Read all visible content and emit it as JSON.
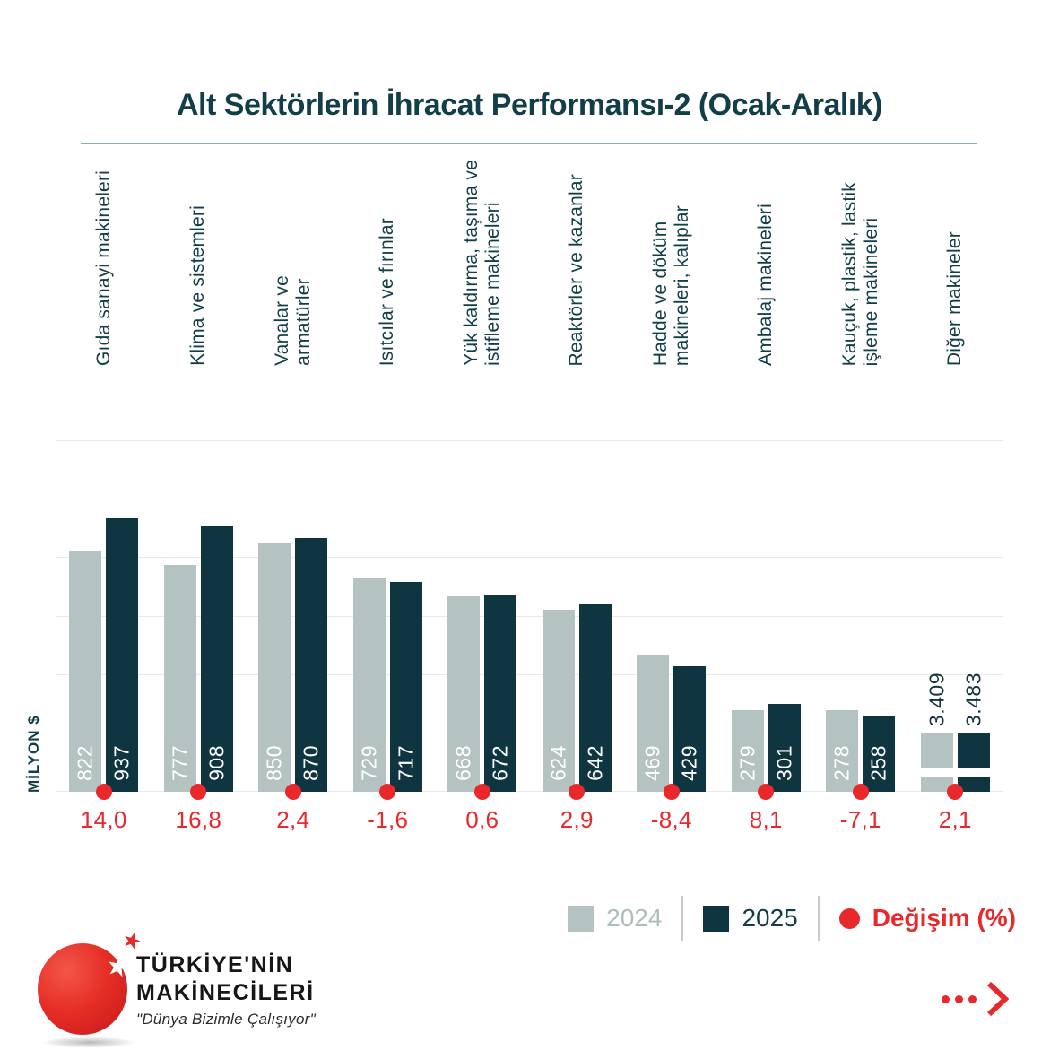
{
  "title": "Alt Sektörlerin İhracat Performansı-2 (Ocak-Aralık)",
  "y_axis_label": "MİLYON $",
  "chart_data": {
    "type": "bar",
    "title": "Alt Sektörlerin İhracat Performansı-2 (Ocak-Aralık)",
    "ylabel": "MİLYON $",
    "ylim": [
      0,
      1200
    ],
    "grid_step": 200,
    "grid": true,
    "legend_position": "bottom-right",
    "categories": [
      "Gıda sanayi makineleri",
      "Klima ve sistemleri",
      "Vanalar ve armatürler",
      "Isıtcılar ve fırınlar",
      "Yük kaldırma, taşıma ve istifleme makineleri",
      "Reaktörler ve kazanlar",
      "Hadde ve döküm makineleri, kalıplar",
      "Ambalaj makineleri",
      "Kauçuk, plastik, lastik işleme makineleri",
      "Diğer makineler"
    ],
    "category_label_lines": [
      [
        "Gıda sanayi makineleri"
      ],
      [
        "Klima ve sistemleri"
      ],
      [
        "Vanalar ve",
        "armatürler"
      ],
      [
        "Isıtcılar ve fırınlar"
      ],
      [
        "Yük kaldırma, taşıma ve",
        "istifleme makineleri"
      ],
      [
        "Reaktörler ve kazanlar"
      ],
      [
        "Hadde ve döküm",
        "makineleri, kalıplar"
      ],
      [
        "Ambalaj makineleri"
      ],
      [
        "Kauçuk, plastik, lastik",
        "işleme makineleri"
      ],
      [
        "Diğer makineler"
      ]
    ],
    "series": [
      {
        "name": "2024",
        "values": [
          822,
          777,
          850,
          729,
          668,
          624,
          469,
          279,
          278,
          3409
        ],
        "labels": [
          "822",
          "777",
          "850",
          "729",
          "668",
          "624",
          "469",
          "279",
          "278",
          "3.409"
        ]
      },
      {
        "name": "2025",
        "values": [
          937,
          908,
          870,
          717,
          672,
          642,
          429,
          301,
          258,
          3483
        ],
        "labels": [
          "937",
          "908",
          "870",
          "717",
          "672",
          "642",
          "429",
          "301",
          "258",
          "3.483"
        ]
      }
    ],
    "change_pct": [
      "14,0",
      "16,8",
      "2,4",
      "-1,6",
      "0,6",
      "2,9",
      "-8,4",
      "8,1",
      "-7,1",
      "2,1"
    ],
    "truncated": [
      false,
      false,
      false,
      false,
      false,
      false,
      false,
      false,
      false,
      true
    ]
  },
  "legend": {
    "items": [
      {
        "label": "2024",
        "marker": "square"
      },
      {
        "label": "2025",
        "marker": "square"
      },
      {
        "label": "Değişim (%)",
        "marker": "dot"
      }
    ]
  },
  "logo": {
    "line1": "TÜRKİYE'NİN",
    "line2": "MAKİNECİLERİ",
    "tagline": "\"Dünya Bizimle Çalışıyor\"",
    "star_icon": "star",
    "ellipsis_arrow_icon": "more-arrow"
  },
  "colors": {
    "bar_2024": "#b4c2c1",
    "bar_2025": "#0f3540",
    "dark_text": "#123e48",
    "value_dark_text": "#14333c",
    "red": "#e8282b",
    "gridline": "#e9e9e9",
    "title_rule": "#8ea9af",
    "legend_gray_text": "#aebcbb",
    "background": "#ffffff"
  }
}
